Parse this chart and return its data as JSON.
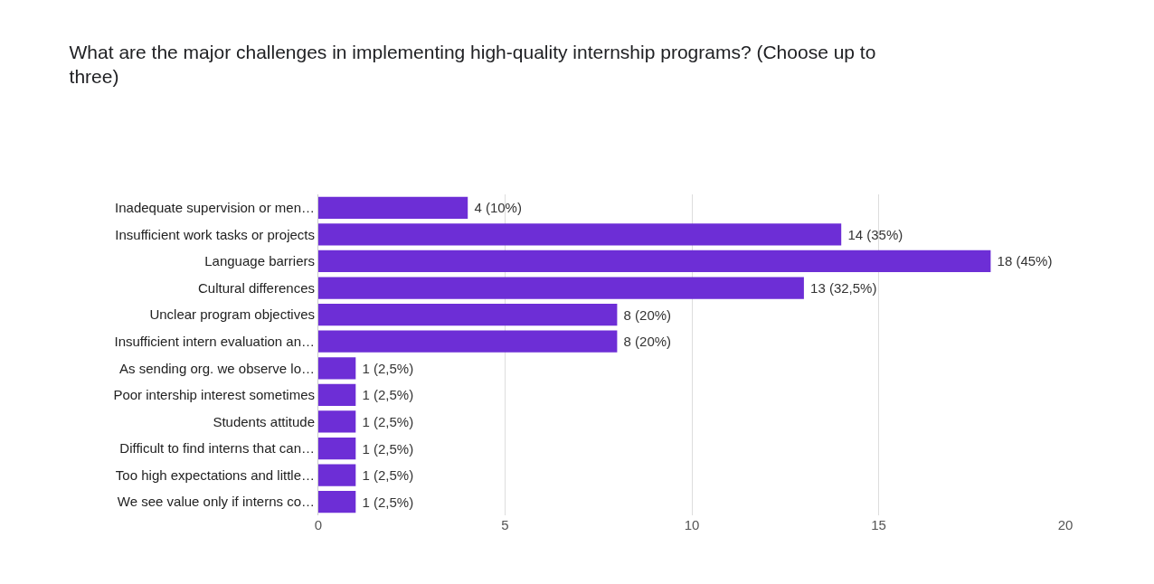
{
  "chart_data": {
    "type": "bar",
    "orientation": "horizontal",
    "title": "What are the major challenges in implementing high-quality internship programs? (Choose up to three)",
    "categories": [
      "Inadequate supervision or men…",
      "Insufficient work tasks or projects",
      "Language barriers",
      "Cultural differences",
      "Unclear program objectives",
      "Insufficient intern evaluation an…",
      "As sending org. we observe lo…",
      "Poor intership interest sometimes",
      "Students attitude",
      "Difficult to find interns that can…",
      "Too high expectations and little…",
      "We see value only if interns co…"
    ],
    "values": [
      4,
      14,
      18,
      13,
      8,
      8,
      1,
      1,
      1,
      1,
      1,
      1
    ],
    "value_labels": [
      "4 (10%)",
      "14 (35%)",
      "18 (45%)",
      "13 (32,5%)",
      "8 (20%)",
      "8 (20%)",
      "1 (2,5%)",
      "1 (2,5%)",
      "1 (2,5%)",
      "1 (2,5%)",
      "1 (2,5%)",
      "1 (2,5%)"
    ],
    "color": "#6d2ed6",
    "xlim": [
      0,
      20
    ],
    "xticks": [
      0,
      5,
      10,
      15,
      20
    ],
    "grid": "x",
    "legend": false
  }
}
